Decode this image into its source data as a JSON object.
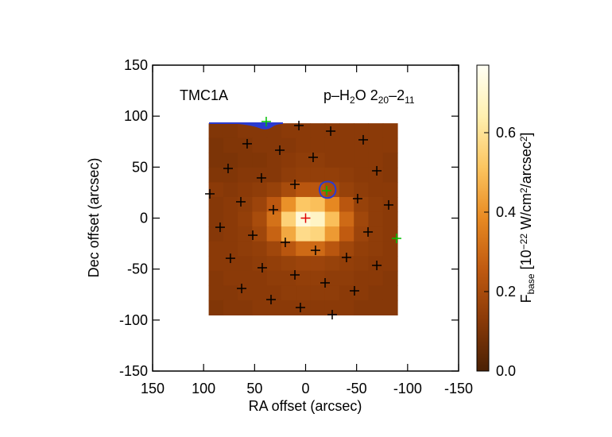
{
  "chart_data": {
    "type": "heatmap",
    "annotations": [
      "TMC1A"
    ],
    "line_label": [
      "p–H",
      "2",
      "O 2",
      "20",
      "–2",
      "11"
    ],
    "x_label": "RA offset (arcsec)",
    "y_label": "Dec offset (arcsec)",
    "xlim": [
      150,
      -150
    ],
    "xticks": [
      150,
      100,
      50,
      0,
      -50,
      -100,
      -150
    ],
    "ylim": [
      -150,
      150
    ],
    "yticks": [
      -150,
      -100,
      -50,
      0,
      50,
      100,
      150
    ],
    "heatmap": {
      "extent_x": [
        95,
        -90
      ],
      "extent_y": [
        93,
        -95
      ],
      "z": [
        [
          0.11,
          0.11,
          0.12,
          0.12,
          0.12,
          0.13,
          0.13,
          0.13,
          0.13,
          0.13,
          0.13,
          0.13,
          0.13
        ],
        [
          0.1,
          0.11,
          0.11,
          0.12,
          0.12,
          0.12,
          0.13,
          0.13,
          0.13,
          0.13,
          0.13,
          0.13,
          0.13
        ],
        [
          0.1,
          0.1,
          0.11,
          0.11,
          0.12,
          0.13,
          0.14,
          0.14,
          0.13,
          0.13,
          0.13,
          0.13,
          0.12
        ],
        [
          0.11,
          0.11,
          0.12,
          0.12,
          0.12,
          0.14,
          0.15,
          0.15,
          0.15,
          0.14,
          0.13,
          0.13,
          0.12
        ],
        [
          0.13,
          0.12,
          0.13,
          0.14,
          0.16,
          0.2,
          0.24,
          0.24,
          0.2,
          0.16,
          0.14,
          0.13,
          0.13
        ],
        [
          0.12,
          0.13,
          0.14,
          0.17,
          0.25,
          0.4,
          0.52,
          0.5,
          0.38,
          0.24,
          0.16,
          0.14,
          0.13
        ],
        [
          0.12,
          0.13,
          0.15,
          0.2,
          0.32,
          0.55,
          0.72,
          0.68,
          0.5,
          0.3,
          0.18,
          0.14,
          0.13
        ],
        [
          0.12,
          0.13,
          0.14,
          0.18,
          0.28,
          0.45,
          0.58,
          0.56,
          0.42,
          0.26,
          0.17,
          0.14,
          0.13
        ],
        [
          0.13,
          0.13,
          0.14,
          0.15,
          0.18,
          0.24,
          0.3,
          0.3,
          0.24,
          0.18,
          0.15,
          0.14,
          0.13
        ],
        [
          0.13,
          0.13,
          0.13,
          0.14,
          0.15,
          0.16,
          0.17,
          0.17,
          0.16,
          0.15,
          0.14,
          0.13,
          0.13
        ],
        [
          0.12,
          0.13,
          0.13,
          0.13,
          0.14,
          0.14,
          0.15,
          0.15,
          0.14,
          0.14,
          0.13,
          0.13,
          0.12
        ],
        [
          0.12,
          0.12,
          0.13,
          0.13,
          0.13,
          0.14,
          0.14,
          0.14,
          0.14,
          0.13,
          0.13,
          0.12,
          0.12
        ],
        [
          0.11,
          0.12,
          0.12,
          0.13,
          0.13,
          0.13,
          0.13,
          0.13,
          0.13,
          0.13,
          0.12,
          0.12,
          0.12
        ]
      ]
    },
    "colormap": [
      "#4a2004",
      "#8a3a08",
      "#c05a10",
      "#e88a22",
      "#fcc560",
      "#fff0b0",
      "#fffff5"
    ],
    "clim": [
      0,
      0.77
    ],
    "cticks": [
      {
        "value": 0,
        "label": "0.0"
      },
      0.2,
      0.4,
      0.6
    ],
    "colorbar_label": [
      "F",
      "base",
      " [10",
      "−22",
      " W/cm",
      "2",
      "/arcsec",
      "2",
      "]"
    ],
    "colorbar_label_shift": [
      "none",
      "sub",
      "none",
      "super",
      "none",
      "super",
      "none",
      "super",
      "none"
    ],
    "pointings": {
      "x": [
        38.6,
        6.6,
        -24.6,
        57.3,
        -56.5,
        25.3,
        -7.4,
        76,
        43.3,
        -69.8,
        10.5,
        93.9,
        -20.7,
        -51,
        63.5,
        31.6,
        -81.4,
        83.8,
        51.8,
        -61.2,
        19.9,
        -9.7,
        73.7,
        -40.1,
        42.5,
        -69.8,
        10.5,
        -19.1,
        62.7,
        -47.9,
        33.9,
        5.1,
        -26.1,
        -89.2,
        0
      ],
      "y": [
        94.7,
        90.8,
        85.3,
        72.9,
        76.8,
        66.6,
        59.6,
        48.7,
        39.4,
        46.4,
        33.1,
        23.8,
        26.9,
        19.1,
        16,
        8.2,
        12.9,
        -9,
        -16.8,
        -13.6,
        -23.8,
        -31.6,
        -39.4,
        -38.6,
        -48.7,
        -46.4,
        -55.7,
        -63.5,
        -69,
        -71.3,
        -79.9,
        -87.7,
        -94.7,
        -19.9,
        0
      ],
      "colors": [
        "#00c000",
        "#000000",
        "#000000",
        "#000000",
        "#000000",
        "#000000",
        "#000000",
        "#000000",
        "#000000",
        "#000000",
        "#000000",
        "#000000",
        "#00c000",
        "#000000",
        "#000000",
        "#000000",
        "#000000",
        "#000000",
        "#000000",
        "#000000",
        "#000000",
        "#000000",
        "#000000",
        "#000000",
        "#000000",
        "#000000",
        "#000000",
        "#000000",
        "#000000",
        "#000000",
        "#000000",
        "#000000",
        "#000000",
        "#00c000",
        "#e00000"
      ]
    },
    "contour_color": "#2a3bd0"
  }
}
